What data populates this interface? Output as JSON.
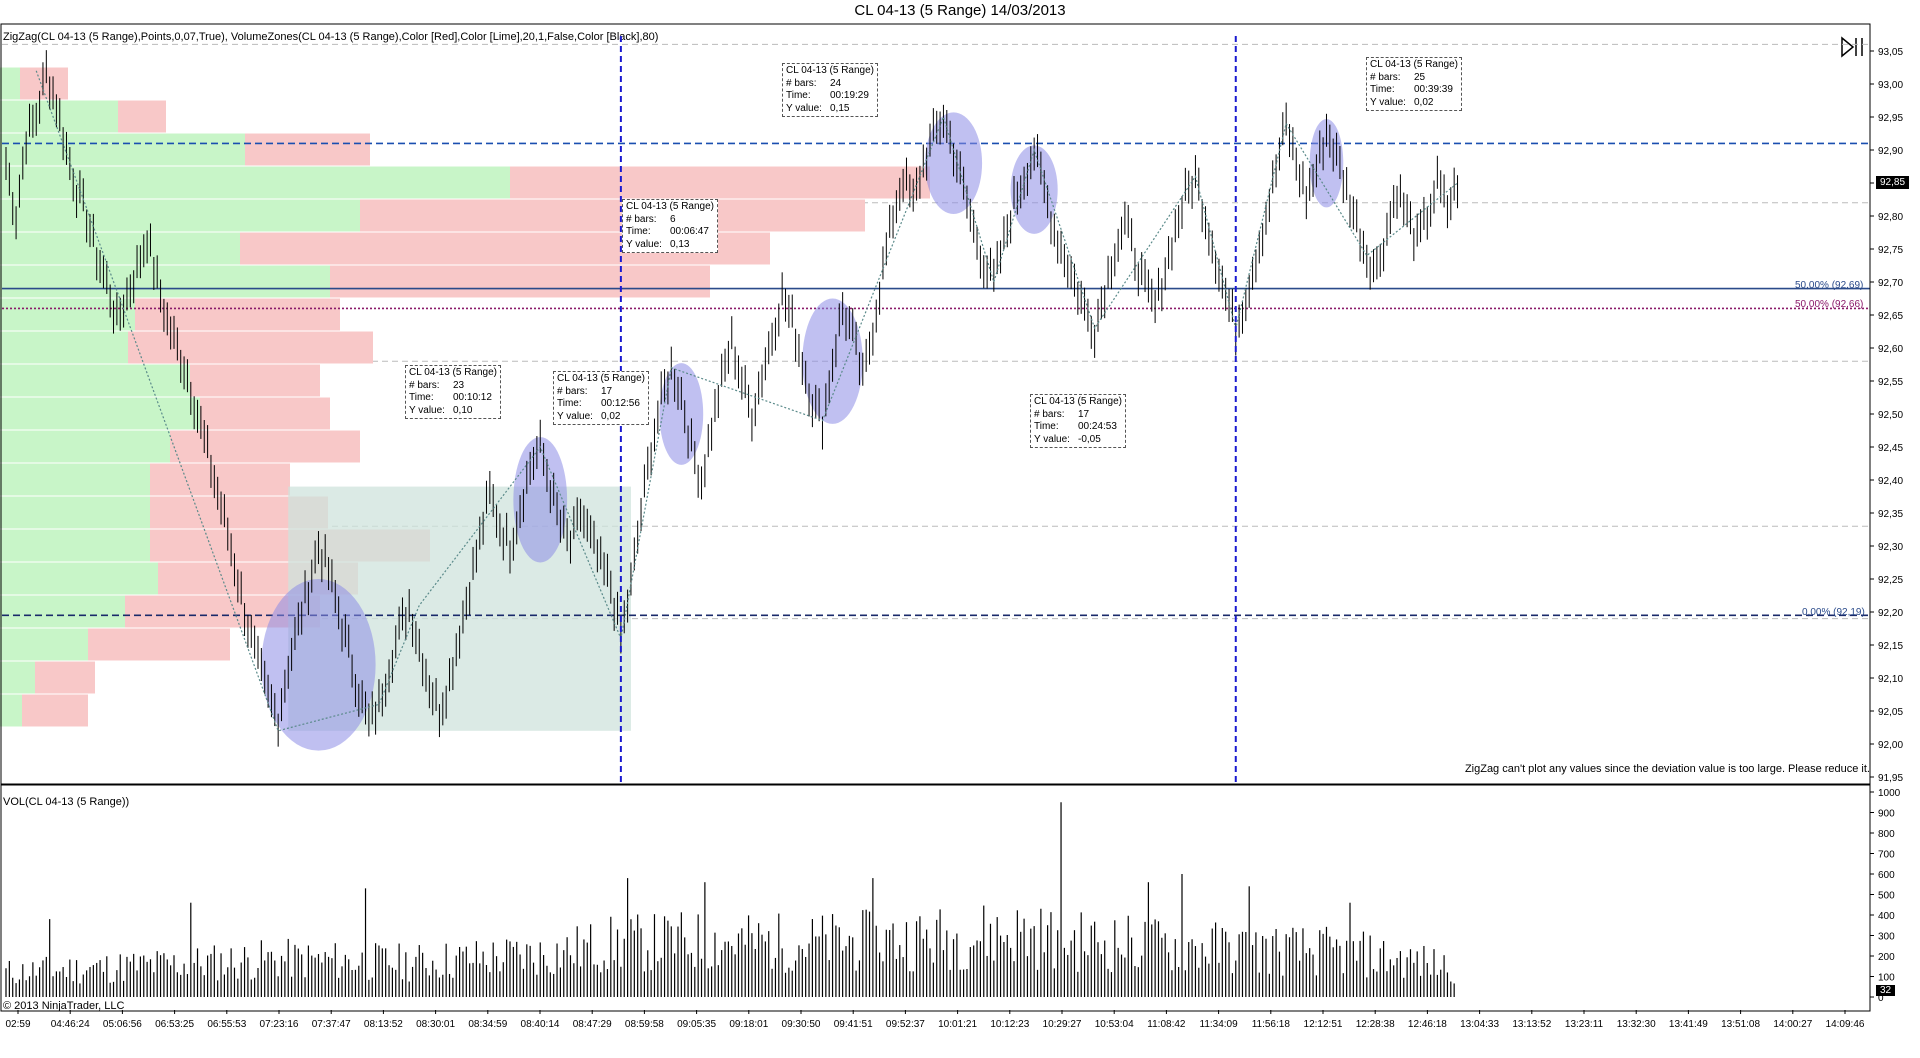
{
  "window": {
    "title": "CL 04-13 (5 Range)  14/03/2013",
    "indicator_label": "ZigZag(CL 04-13 (5 Range),Points,0,07,True), VolumeZones(CL 04-13 (5 Range),Color [Red],Color [Lime],20,1,False,Color [Black],80)",
    "volume_label": "VOL(CL 04-13 (5 Range))",
    "copyright": "© 2013 NinjaTrader, LLC",
    "zigzag_warning": "ZigZag can't plot any values since the deviation value is too large. Please reduce it.",
    "last_price": "92,85",
    "last_volume": "32"
  },
  "fib_levels": [
    {
      "label": "50,00% (92,69)",
      "color": "#2a4a8a"
    },
    {
      "label": "50,00% (92,66)",
      "color": "#8a1a6a"
    },
    {
      "label": "0,00% (92,19)",
      "color": "#2a4a8a"
    }
  ],
  "info_boxes": [
    {
      "header": "CL 04-13 (5 Range)",
      "bars_key": "# bars:",
      "bars": "24",
      "time_key": "Time:",
      "time": "00:19:29",
      "y_key": "Y value:",
      "y": "0,15"
    },
    {
      "header": "CL 04-13 (5 Range)",
      "bars_key": "# bars:",
      "bars": "25",
      "time_key": "Time:",
      "time": "00:39:39",
      "y_key": "Y value:",
      "y": "0,02"
    },
    {
      "header": "CL 04-13 (5 Range)",
      "bars_key": "# bars:",
      "bars": "6",
      "time_key": "Time:",
      "time": "00:06:47",
      "y_key": "Y value:",
      "y": "0,13"
    },
    {
      "header": "CL 04-13 (5 Range)",
      "bars_key": "# bars:",
      "bars": "23",
      "time_key": "Time:",
      "time": "00:10:12",
      "y_key": "Y value:",
      "y": "0,10"
    },
    {
      "header": "CL 04-13 (5 Range)",
      "bars_key": "# bars:",
      "bars": "17",
      "time_key": "Time:",
      "time": "00:12:56",
      "y_key": "Y value:",
      "y": "0,02"
    },
    {
      "header": "CL 04-13 (5 Range)",
      "bars_key": "# bars:",
      "bars": "17",
      "time_key": "Time:",
      "time": "00:24:53",
      "y_key": "Y value:",
      "y": "-0,05"
    }
  ],
  "chart_data": [
    {
      "type": "line",
      "title": "CL 04-13 (5 Range)  14/03/2013",
      "price_ticks": [
        "93,05",
        "93,00",
        "92,95",
        "92,90",
        "92,85",
        "92,80",
        "92,75",
        "92,70",
        "92,65",
        "92,60",
        "92,55",
        "92,50",
        "92,45",
        "92,40",
        "92,35",
        "92,30",
        "92,25",
        "92,20",
        "92,15",
        "92,10",
        "92,05",
        "92,00",
        "91,95"
      ],
      "ylim": [
        91.95,
        93.05
      ],
      "time_ticks": [
        "02:59",
        "04:46:24",
        "05:06:56",
        "06:53:25",
        "06:55:53",
        "07:23:16",
        "07:37:47",
        "08:13:52",
        "08:30:01",
        "08:34:59",
        "08:40:14",
        "08:47:29",
        "08:59:58",
        "09:05:35",
        "09:18:01",
        "09:30:50",
        "09:41:51",
        "09:52:37",
        "10:01:21",
        "10:12:23",
        "10:29:27",
        "10:53:04",
        "11:08:42",
        "11:34:09",
        "11:56:18",
        "12:12:51",
        "12:28:38",
        "12:46:18",
        "13:04:33",
        "13:13:52",
        "13:23:11",
        "13:32:30",
        "13:41:49",
        "13:51:08",
        "14:00:27",
        "14:09:46"
      ],
      "price_path": [
        [
          0,
          92.88
        ],
        [
          3,
          92.8
        ],
        [
          6,
          92.92
        ],
        [
          9,
          92.95
        ],
        [
          12,
          93.02
        ],
        [
          15,
          92.97
        ],
        [
          18,
          92.9
        ],
        [
          21,
          92.84
        ],
        [
          24,
          92.8
        ],
        [
          27,
          92.74
        ],
        [
          30,
          92.7
        ],
        [
          33,
          92.64
        ],
        [
          36,
          92.68
        ],
        [
          39,
          92.72
        ],
        [
          42,
          92.77
        ],
        [
          45,
          92.7
        ],
        [
          48,
          92.64
        ],
        [
          51,
          92.6
        ],
        [
          54,
          92.56
        ],
        [
          57,
          92.5
        ],
        [
          60,
          92.44
        ],
        [
          63,
          92.38
        ],
        [
          66,
          92.32
        ],
        [
          69,
          92.25
        ],
        [
          72,
          92.18
        ],
        [
          75,
          92.12
        ],
        [
          78,
          92.07
        ],
        [
          81,
          92.04
        ],
        [
          84,
          92.12
        ],
        [
          87,
          92.18
        ],
        [
          90,
          92.24
        ],
        [
          93,
          92.3
        ],
        [
          96,
          92.26
        ],
        [
          99,
          92.2
        ],
        [
          102,
          92.14
        ],
        [
          105,
          92.08
        ],
        [
          108,
          92.03
        ],
        [
          111,
          92.06
        ],
        [
          114,
          92.12
        ],
        [
          117,
          92.17
        ],
        [
          120,
          92.21
        ],
        [
          123,
          92.15
        ],
        [
          126,
          92.09
        ],
        [
          129,
          92.05
        ],
        [
          132,
          92.1
        ],
        [
          135,
          92.17
        ],
        [
          138,
          92.24
        ],
        [
          141,
          92.31
        ],
        [
          144,
          92.38
        ],
        [
          147,
          92.33
        ],
        [
          150,
          92.3
        ],
        [
          153,
          92.36
        ],
        [
          156,
          92.42
        ],
        [
          159,
          92.45
        ],
        [
          162,
          92.39
        ],
        [
          165,
          92.33
        ],
        [
          168,
          92.3
        ],
        [
          171,
          92.35
        ],
        [
          174,
          92.31
        ],
        [
          177,
          92.27
        ],
        [
          180,
          92.24
        ],
        [
          183,
          92.16
        ],
        [
          186,
          92.24
        ],
        [
          189,
          92.35
        ],
        [
          192,
          92.45
        ],
        [
          195,
          92.52
        ],
        [
          198,
          92.57
        ],
        [
          201,
          92.53
        ],
        [
          204,
          92.45
        ],
        [
          207,
          92.4
        ],
        [
          210,
          92.48
        ],
        [
          213,
          92.55
        ],
        [
          216,
          92.61
        ],
        [
          219,
          92.55
        ],
        [
          222,
          92.5
        ],
        [
          225,
          92.56
        ],
        [
          228,
          92.62
        ],
        [
          231,
          92.68
        ],
        [
          234,
          92.64
        ],
        [
          237,
          92.58
        ],
        [
          240,
          92.52
        ],
        [
          243,
          92.49
        ],
        [
          246,
          92.58
        ],
        [
          249,
          92.66
        ],
        [
          252,
          92.62
        ],
        [
          255,
          92.55
        ],
        [
          258,
          92.63
        ],
        [
          261,
          92.72
        ],
        [
          264,
          92.8
        ],
        [
          267,
          92.86
        ],
        [
          270,
          92.82
        ],
        [
          273,
          92.88
        ],
        [
          276,
          92.92
        ],
        [
          279,
          92.95
        ],
        [
          282,
          92.9
        ],
        [
          285,
          92.84
        ],
        [
          288,
          92.78
        ],
        [
          291,
          92.73
        ],
        [
          294,
          92.7
        ],
        [
          297,
          92.76
        ],
        [
          300,
          92.82
        ],
        [
          303,
          92.86
        ],
        [
          306,
          92.9
        ],
        [
          309,
          92.84
        ],
        [
          312,
          92.78
        ],
        [
          315,
          92.74
        ],
        [
          318,
          92.7
        ],
        [
          321,
          92.66
        ],
        [
          324,
          92.63
        ],
        [
          327,
          92.69
        ],
        [
          330,
          92.75
        ],
        [
          333,
          92.79
        ],
        [
          336,
          92.74
        ],
        [
          339,
          92.69
        ],
        [
          342,
          92.66
        ],
        [
          345,
          92.72
        ],
        [
          348,
          92.78
        ],
        [
          351,
          92.83
        ],
        [
          354,
          92.86
        ],
        [
          357,
          92.8
        ],
        [
          360,
          92.74
        ],
        [
          363,
          92.68
        ],
        [
          366,
          92.63
        ],
        [
          369,
          92.68
        ],
        [
          372,
          92.74
        ],
        [
          375,
          92.8
        ],
        [
          378,
          92.87
        ],
        [
          381,
          92.94
        ],
        [
          384,
          92.88
        ],
        [
          387,
          92.83
        ],
        [
          390,
          92.87
        ],
        [
          393,
          92.93
        ],
        [
          396,
          92.89
        ],
        [
          399,
          92.84
        ],
        [
          402,
          92.79
        ],
        [
          405,
          92.74
        ],
        [
          408,
          92.72
        ],
        [
          411,
          92.78
        ],
        [
          414,
          92.84
        ],
        [
          417,
          92.8
        ],
        [
          420,
          92.76
        ],
        [
          423,
          92.8
        ],
        [
          426,
          92.85
        ],
        [
          429,
          92.81
        ],
        [
          432,
          92.85
        ]
      ],
      "zigzag": [
        [
          9,
          93.02
        ],
        [
          81,
          92.02
        ],
        [
          111,
          92.06
        ],
        [
          123,
          92.21
        ],
        [
          159,
          92.45
        ],
        [
          183,
          92.16
        ],
        [
          198,
          92.57
        ],
        [
          243,
          92.49
        ],
        [
          279,
          92.95
        ],
        [
          294,
          92.7
        ],
        [
          306,
          92.9
        ],
        [
          324,
          92.63
        ],
        [
          354,
          92.86
        ],
        [
          366,
          92.63
        ],
        [
          381,
          92.94
        ],
        [
          405,
          92.74
        ],
        [
          432,
          92.85
        ]
      ],
      "volume_zones": [
        {
          "price": 93.0,
          "buy": 20,
          "sell": 48
        },
        {
          "price": 92.95,
          "buy": 118,
          "sell": 48
        },
        {
          "price": 92.9,
          "buy": 245,
          "sell": 125
        },
        {
          "price": 92.85,
          "buy": 510,
          "sell": 420
        },
        {
          "price": 92.8,
          "buy": 360,
          "sell": 505
        },
        {
          "price": 92.75,
          "buy": 240,
          "sell": 530
        },
        {
          "price": 92.7,
          "buy": 330,
          "sell": 380
        },
        {
          "price": 92.65,
          "buy": 135,
          "sell": 205
        },
        {
          "price": 92.6,
          "buy": 128,
          "sell": 245
        },
        {
          "price": 92.55,
          "buy": 190,
          "sell": 130
        },
        {
          "price": 92.5,
          "buy": 200,
          "sell": 130
        },
        {
          "price": 92.45,
          "buy": 170,
          "sell": 190
        },
        {
          "price": 92.4,
          "buy": 150,
          "sell": 140
        },
        {
          "price": 92.35,
          "buy": 150,
          "sell": 178
        },
        {
          "price": 92.3,
          "buy": 150,
          "sell": 280
        },
        {
          "price": 92.25,
          "buy": 158,
          "sell": 200
        },
        {
          "price": 92.2,
          "buy": 125,
          "sell": 195
        },
        {
          "price": 92.15,
          "buy": 88,
          "sell": 142
        },
        {
          "price": 92.1,
          "buy": 35,
          "sell": 60
        },
        {
          "price": 92.05,
          "buy": 22,
          "sell": 66
        }
      ],
      "volume_zone_colors": {
        "buy": "#c8f5c8",
        "sell": "#f8c8c8"
      },
      "highlight_rect": {
        "x0": 84,
        "x1": 186,
        "y0": 92.39,
        "y1": 92.02,
        "color": "#cfe3dc"
      },
      "ellipses": [
        {
          "cx": 93,
          "cy": 92.12,
          "rx": 17,
          "ry": 0.13
        },
        {
          "cx": 159,
          "cy": 92.37,
          "rx": 8,
          "ry": 0.095
        },
        {
          "cx": 201,
          "cy": 92.5,
          "rx": 6.5,
          "ry": 0.077
        },
        {
          "cx": 246,
          "cy": 92.58,
          "rx": 9,
          "ry": 0.095
        },
        {
          "cx": 282,
          "cy": 92.88,
          "rx": 8.5,
          "ry": 0.077
        },
        {
          "cx": 306,
          "cy": 92.84,
          "rx": 7,
          "ry": 0.067
        },
        {
          "cx": 393,
          "cy": 92.88,
          "rx": 5,
          "ry": 0.067
        }
      ],
      "vertical_lines": [
        183,
        366
      ],
      "horizontal_levels": [
        {
          "price": 92.91,
          "style": "dash",
          "color": "#1a4fb0"
        },
        {
          "price": 92.69,
          "style": "solid",
          "color": "#2a4a8a"
        },
        {
          "price": 92.66,
          "style": "dot",
          "color": "#8a1a6a"
        },
        {
          "price": 92.195,
          "style": "dash",
          "color": "#1a2a6a"
        }
      ],
      "gray_levels": [
        93.06,
        92.82,
        92.58,
        92.33,
        92.19
      ]
    },
    {
      "type": "bar",
      "title": "VOL(CL 04-13 (5 Range))",
      "ylim": [
        0,
        1000
      ],
      "ticks": [
        "1000",
        "900",
        "800",
        "700",
        "600",
        "500",
        "400",
        "300",
        "200",
        "100",
        "0"
      ],
      "bar_count": 432,
      "values_seed_profile": [
        [
          0,
          150
        ],
        [
          40,
          190
        ],
        [
          80,
          230
        ],
        [
          120,
          210
        ],
        [
          160,
          260
        ],
        [
          180,
          320
        ],
        [
          200,
          340
        ],
        [
          240,
          330
        ],
        [
          280,
          360
        ],
        [
          300,
          390
        ],
        [
          320,
          340
        ],
        [
          360,
          300
        ],
        [
          400,
          270
        ],
        [
          432,
          180
        ]
      ],
      "spikes": [
        [
          13,
          380
        ],
        [
          55,
          460
        ],
        [
          107,
          530
        ],
        [
          185,
          580
        ],
        [
          208,
          560
        ],
        [
          258,
          580
        ],
        [
          314,
          950
        ],
        [
          340,
          560
        ],
        [
          350,
          600
        ],
        [
          370,
          540
        ],
        [
          400,
          460
        ]
      ]
    }
  ]
}
